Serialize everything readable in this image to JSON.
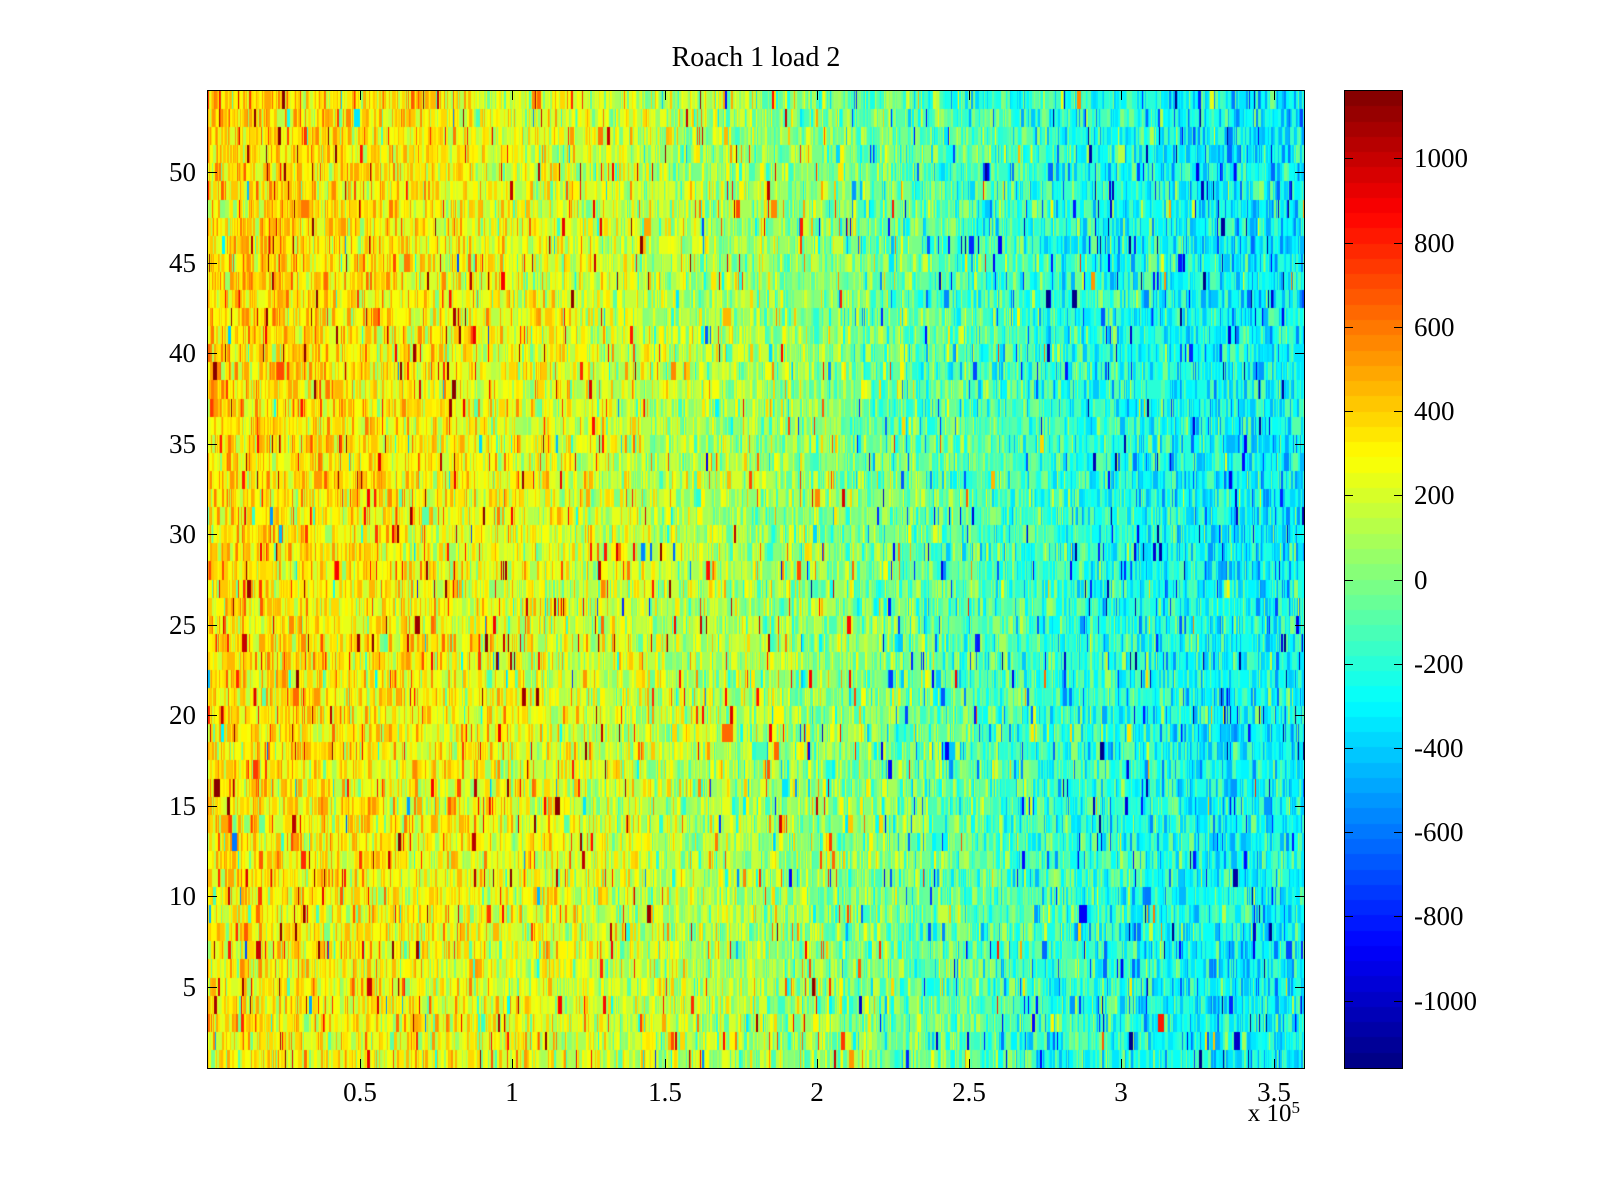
{
  "chart_data": {
    "type": "heatmap",
    "title": "Roach 1 load 2",
    "x_axis": {
      "tick_values": [
        0.5,
        1,
        1.5,
        2,
        2.5,
        3,
        3.5
      ],
      "tick_labels": [
        "0.5",
        "1",
        "1.5",
        "2",
        "2.5",
        "3",
        "3.5"
      ],
      "range": [
        0,
        3.6
      ],
      "unit_multiplier_base": "x 10",
      "unit_multiplier_exponent": "5"
    },
    "y_axis": {
      "tick_values": [
        5,
        10,
        15,
        20,
        25,
        30,
        35,
        40,
        45,
        50
      ],
      "tick_labels": [
        "5",
        "10",
        "15",
        "20",
        "25",
        "30",
        "35",
        "40",
        "45",
        "50"
      ],
      "range": [
        0.5,
        54.5
      ],
      "rows": 54
    },
    "colorbar": {
      "tick_values": [
        1000,
        800,
        600,
        400,
        200,
        0,
        -200,
        -400,
        -600,
        -800,
        -1000
      ],
      "tick_labels": [
        "1000",
        "800",
        "600",
        "400",
        "200",
        "0",
        "-200",
        "-400",
        "-600",
        "-800",
        "-1000"
      ],
      "clim": [
        -1160,
        1160
      ],
      "colormap": "jet",
      "levels": 64
    },
    "field_mean_grid": [
      [
        380,
        300,
        210,
        110,
        10,
        -110,
        -230,
        -310
      ],
      [
        370,
        300,
        210,
        110,
        20,
        -100,
        -220,
        -300
      ],
      [
        350,
        290,
        215,
        120,
        30,
        -90,
        -210,
        -290
      ],
      [
        330,
        280,
        210,
        130,
        40,
        -80,
        -200,
        -280
      ],
      [
        320,
        280,
        215,
        135,
        45,
        -75,
        -195,
        -275
      ],
      [
        310,
        270,
        210,
        130,
        40,
        -80,
        -200,
        -280
      ]
    ],
    "noise": {
      "std": 150,
      "spike_probability": 0.05,
      "spike_min": 250,
      "spike_max": 900,
      "streak_persistence": 0.35,
      "seed": 7
    },
    "columns": 1096
  }
}
